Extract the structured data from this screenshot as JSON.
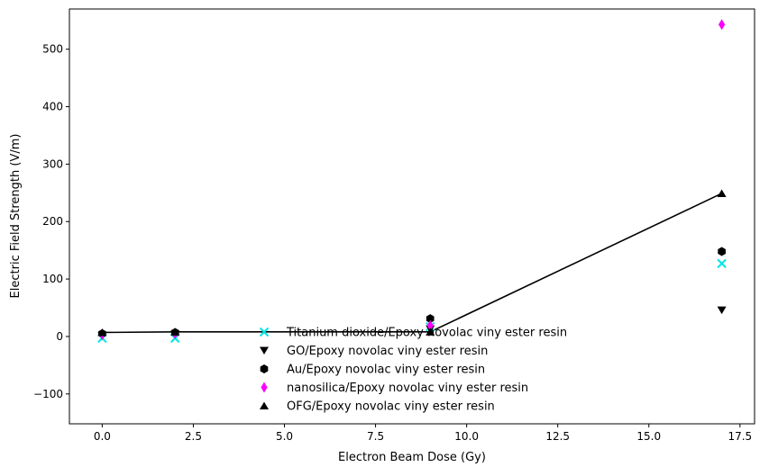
{
  "chart_data": {
    "type": "scatter",
    "title": "",
    "xlabel": "Electron Beam Dose (Gy)",
    "ylabel": "Electric Field Strength (V/m)",
    "xlim": [
      -0.9,
      17.9
    ],
    "ylim": [
      -152,
      570
    ],
    "x_ticks": [
      0.0,
      2.5,
      5.0,
      7.5,
      10.0,
      12.5,
      15.0,
      17.5
    ],
    "x_tick_labels": [
      "0.0",
      "2.5",
      "5.0",
      "7.5",
      "10.0",
      "12.5",
      "15.0",
      "17.5"
    ],
    "y_ticks": [
      -100,
      0,
      100,
      200,
      300,
      400,
      500
    ],
    "y_tick_labels": [
      "−100",
      "0",
      "100",
      "200",
      "300",
      "400",
      "500"
    ],
    "grid": false,
    "legend_position": "lower-center",
    "series": [
      {
        "name": "Titanium dioxide/Epoxy novolac viny ester resin",
        "marker": "x",
        "color": "#00e5e5",
        "x": [
          0,
          2,
          9,
          17
        ],
        "y": [
          -3,
          -3,
          17,
          127
        ],
        "line": false
      },
      {
        "name": "GO/Epoxy novolac viny ester resin",
        "marker": "triangle-down",
        "color": "#000000",
        "x": [
          0,
          2,
          9,
          17
        ],
        "y": [
          1,
          4,
          13,
          46
        ],
        "line": false
      },
      {
        "name": "Au/Epoxy novolac viny ester resin",
        "marker": "hexagon",
        "color": "#000000",
        "x": [
          0,
          2,
          9,
          17
        ],
        "y": [
          5,
          7,
          31,
          148
        ],
        "line": false
      },
      {
        "name": "nanosilica/Epoxy novolac viny ester resin",
        "marker": "thin-diamond",
        "color": "#ff00ff",
        "x": [
          0,
          2,
          9,
          17
        ],
        "y": [
          4,
          5,
          19,
          543
        ],
        "line": false
      },
      {
        "name": "OFG/Epoxy novolac viny ester resin",
        "marker": "triangle-up",
        "color": "#000000",
        "x": [
          0,
          2,
          9,
          17
        ],
        "y": [
          7,
          8,
          8,
          249
        ],
        "line": true
      }
    ]
  }
}
